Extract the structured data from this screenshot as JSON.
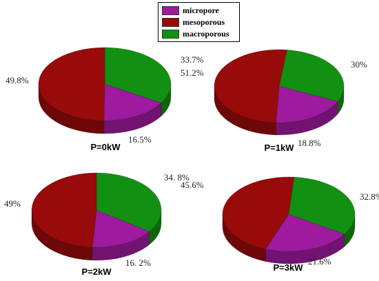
{
  "colors": {
    "micropore": "#9e1a9e",
    "mesoporous": "#990a0a",
    "macroporous": "#129012"
  },
  "legend": {
    "items": [
      {
        "key": "micropore",
        "label": "micropore"
      },
      {
        "key": "mesoporous",
        "label": "mesoporous"
      },
      {
        "key": "macroporous",
        "label": "macroporous"
      }
    ]
  },
  "chart_data": [
    {
      "type": "pie",
      "title": "P=0kW",
      "slices": [
        {
          "key": "macroporous",
          "value": 33.7,
          "label": "33.7%"
        },
        {
          "key": "micropore",
          "value": 16.5,
          "label": "16.5%"
        },
        {
          "key": "mesoporous",
          "value": 49.8,
          "label": "49.8%"
        }
      ]
    },
    {
      "type": "pie",
      "title": "P=1kW",
      "slices": [
        {
          "key": "macroporous",
          "value": 30.0,
          "label": "30%"
        },
        {
          "key": "micropore",
          "value": 18.8,
          "label": "18.8%"
        },
        {
          "key": "mesoporous",
          "value": 51.2,
          "label": "51.2%"
        }
      ]
    },
    {
      "type": "pie",
      "title": "P=2kW",
      "slices": [
        {
          "key": "macroporous",
          "value": 34.8,
          "label": "34. 8%"
        },
        {
          "key": "micropore",
          "value": 16.2,
          "label": "16. 2%"
        },
        {
          "key": "mesoporous",
          "value": 49.0,
          "label": "49%"
        }
      ]
    },
    {
      "type": "pie",
      "title": "P=3kW",
      "slices": [
        {
          "key": "macroporous",
          "value": 32.8,
          "label": "32.8%"
        },
        {
          "key": "micropore",
          "value": 21.6,
          "label": "21.6%"
        },
        {
          "key": "mesoporous",
          "value": 45.6,
          "label": "45.6%"
        }
      ]
    }
  ]
}
